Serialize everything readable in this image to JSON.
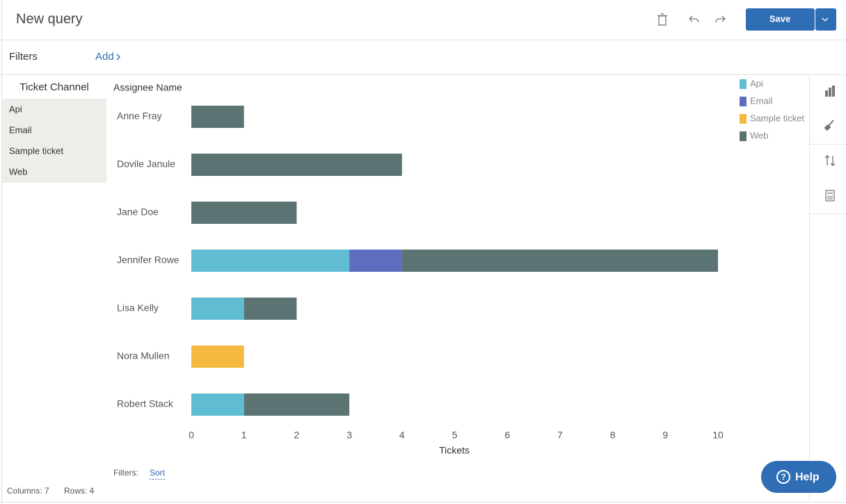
{
  "header": {
    "title": "New query",
    "save": "Save"
  },
  "filters_bar": {
    "label": "Filters",
    "add": "Add"
  },
  "left_panel": {
    "title": "Ticket Channel",
    "items": [
      "Api",
      "Email",
      "Sample ticket",
      "Web"
    ]
  },
  "footer": {
    "filters_label": "Filters:",
    "sort": "Sort",
    "columns": "Columns: 7",
    "rows": "Rows: 4",
    "help": "Help"
  },
  "chart_data": {
    "type": "bar",
    "orientation": "horizontal",
    "stacked": true,
    "y_label": "Assignee Name",
    "x_label": "Tickets",
    "categories": [
      "Anne Fray",
      "Dovile Janule",
      "Jane Doe",
      "Jennifer Rowe",
      "Lisa Kelly",
      "Nora Mullen",
      "Robert Stack"
    ],
    "series": [
      {
        "name": "Api",
        "color": "#5fbcd3",
        "values": [
          null,
          null,
          null,
          3,
          1,
          null,
          1
        ]
      },
      {
        "name": "Email",
        "color": "#5f6dbf",
        "values": [
          null,
          null,
          null,
          1,
          null,
          null,
          null
        ]
      },
      {
        "name": "Sample ticket",
        "color": "#f5b942",
        "values": [
          null,
          null,
          null,
          null,
          null,
          1,
          null
        ]
      },
      {
        "name": "Web",
        "color": "#5c7374",
        "values": [
          1,
          4,
          2,
          6,
          1,
          null,
          2
        ]
      }
    ],
    "xlim": [
      0,
      10
    ],
    "xticks": [
      0,
      1,
      2,
      3,
      4,
      5,
      6,
      7,
      8,
      9,
      10
    ],
    "grid": false,
    "legend": "top-right"
  }
}
